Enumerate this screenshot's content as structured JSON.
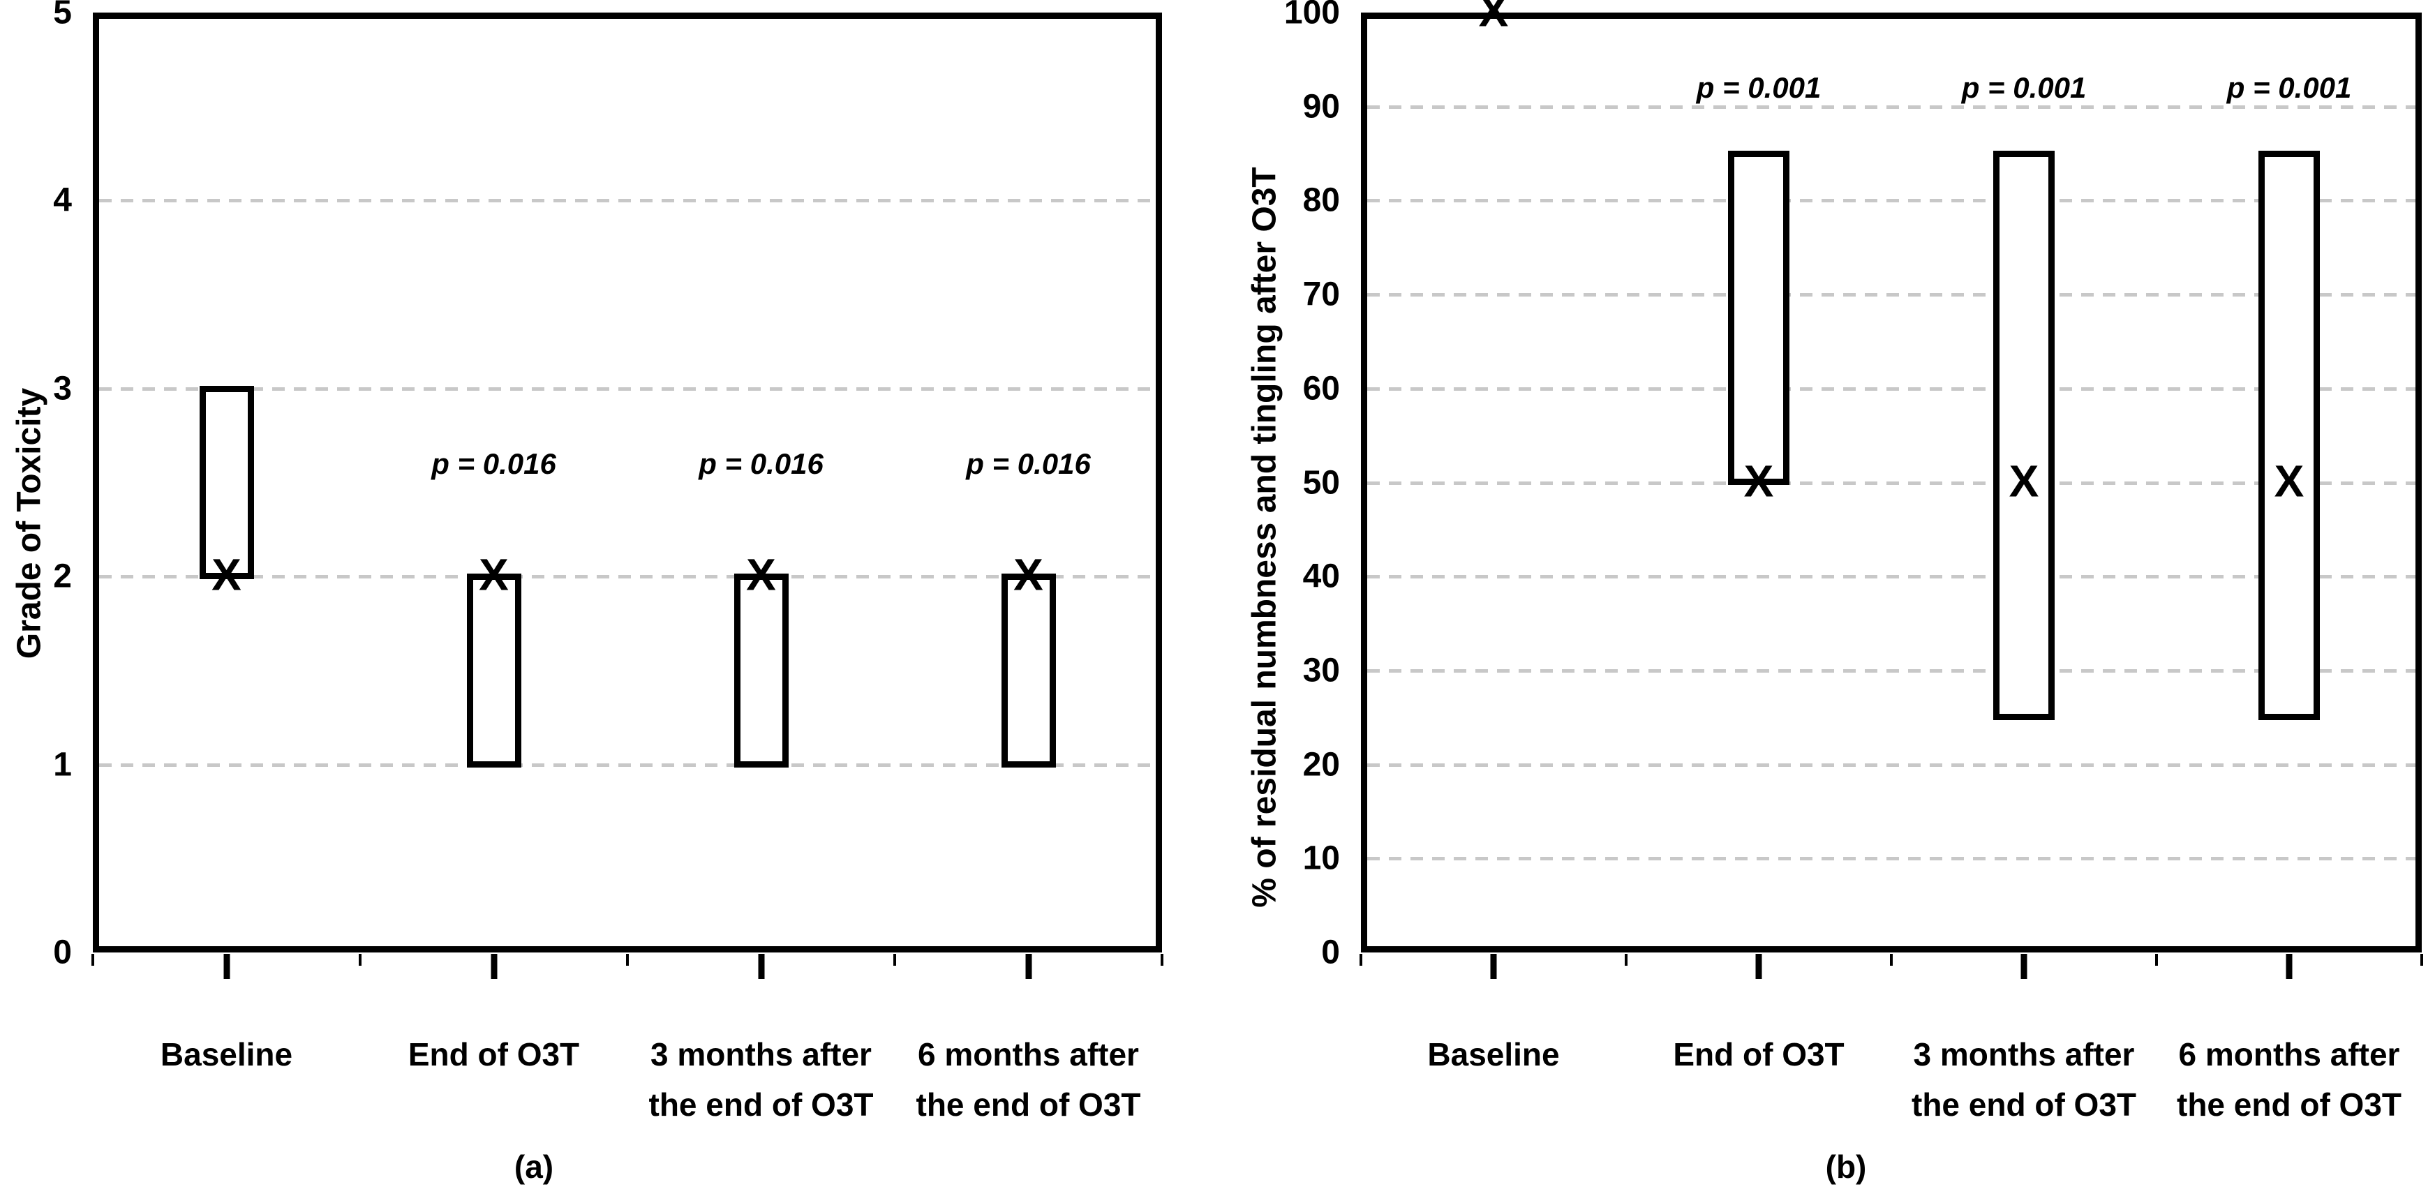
{
  "figure": {
    "background": "#ffffff",
    "captions": {
      "a": "(a)",
      "b": "(b)"
    }
  },
  "colors": {
    "axis": "#000000",
    "gridline": "#c8c8c8",
    "box_fill": "#ffffff",
    "text": "#000000"
  },
  "marker_glyph": "X",
  "chart_data": [
    {
      "id": "a",
      "type": "box",
      "panel_caption": "(a)",
      "ylabel": "Grade of Toxicity",
      "xlabel": "",
      "ylim": [
        0,
        5
      ],
      "ytick_step": 1,
      "yticks": [
        "0",
        "1",
        "2",
        "3",
        "4",
        "5"
      ],
      "gridlines_at": [
        1,
        2,
        3,
        4
      ],
      "grid_style": "dashed-horizontal",
      "legend": "none",
      "categories": [
        [
          "Baseline"
        ],
        [
          "End of O3T"
        ],
        [
          "3 months after",
          "the end of O3T"
        ],
        [
          "6 months after",
          "the end of O3T"
        ]
      ],
      "boxes": [
        {
          "category": "Baseline",
          "low": 2,
          "high": 3,
          "marker": 2
        },
        {
          "category": "End of O3T",
          "low": 1,
          "high": 2,
          "marker": 2
        },
        {
          "category": "3 months after the end of O3T",
          "low": 1,
          "high": 2,
          "marker": 2
        },
        {
          "category": "6 months after the end of O3T",
          "low": 1,
          "high": 2,
          "marker": 2
        }
      ],
      "annotations": [
        {
          "category_index": 1,
          "text": "p = 0.016",
          "y": 2.6
        },
        {
          "category_index": 2,
          "text": "p = 0.016",
          "y": 2.6
        },
        {
          "category_index": 3,
          "text": "p = 0.016",
          "y": 2.6
        }
      ]
    },
    {
      "id": "b",
      "type": "box",
      "panel_caption": "(b)",
      "ylabel": "% of residual numbness and tingling after O3T",
      "xlabel": "",
      "ylim": [
        0,
        100
      ],
      "ytick_step": 10,
      "yticks": [
        "0",
        "10",
        "20",
        "30",
        "40",
        "50",
        "60",
        "70",
        "80",
        "90",
        "100"
      ],
      "gridlines_at": [
        10,
        20,
        30,
        40,
        50,
        60,
        70,
        80,
        90
      ],
      "grid_style": "dashed-horizontal",
      "legend": "none",
      "categories": [
        [
          "Baseline"
        ],
        [
          "End of O3T"
        ],
        [
          "3 months after",
          "the end of O3T"
        ],
        [
          "6 months after",
          "the end of O3T"
        ]
      ],
      "boxes": [
        {
          "category": "Baseline",
          "low": null,
          "high": null,
          "marker": 100
        },
        {
          "category": "End of O3T",
          "low": 50,
          "high": 85,
          "marker": 50
        },
        {
          "category": "3 months after the end of O3T",
          "low": 25,
          "high": 85,
          "marker": 50
        },
        {
          "category": "6 months after the end of O3T",
          "low": 25,
          "high": 85,
          "marker": 50
        }
      ],
      "annotations": [
        {
          "category_index": 1,
          "text": "p = 0.001",
          "y": 92
        },
        {
          "category_index": 2,
          "text": "p = 0.001",
          "y": 92
        },
        {
          "category_index": 3,
          "text": "p = 0.001",
          "y": 92
        }
      ]
    }
  ]
}
